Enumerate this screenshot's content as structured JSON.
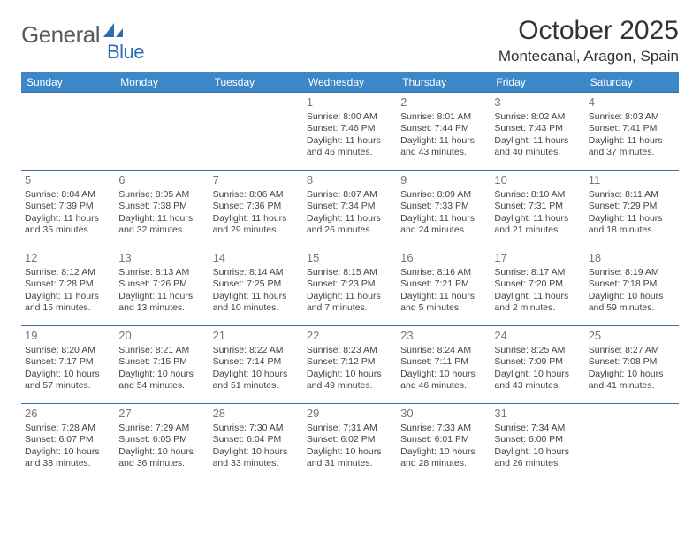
{
  "brand": {
    "name_part1": "General",
    "name_part2": "Blue",
    "icon_color": "#2b6fb0",
    "text_color_gray": "#5a5a5a",
    "text_color_blue": "#2b6fb0"
  },
  "title": {
    "month_year": "October 2025",
    "location": "Montecanal, Aragon, Spain",
    "title_fontsize": 30,
    "location_fontsize": 17
  },
  "style": {
    "header_bg": "#3b87c8",
    "header_fg": "#ffffff",
    "cell_border": "#3b6fa0",
    "daynum_color": "#777777",
    "body_font": "Arial",
    "cell_fontsize": 10.5,
    "daynum_fontsize": 13,
    "dayhead_fontsize": 12
  },
  "weekdays": [
    "Sunday",
    "Monday",
    "Tuesday",
    "Wednesday",
    "Thursday",
    "Friday",
    "Saturday"
  ],
  "grid": [
    [
      {
        "blank": true
      },
      {
        "blank": true
      },
      {
        "blank": true
      },
      {
        "day": "1",
        "sunrise": "8:00 AM",
        "sunset": "7:46 PM",
        "daylight": "11 hours and 46 minutes."
      },
      {
        "day": "2",
        "sunrise": "8:01 AM",
        "sunset": "7:44 PM",
        "daylight": "11 hours and 43 minutes."
      },
      {
        "day": "3",
        "sunrise": "8:02 AM",
        "sunset": "7:43 PM",
        "daylight": "11 hours and 40 minutes."
      },
      {
        "day": "4",
        "sunrise": "8:03 AM",
        "sunset": "7:41 PM",
        "daylight": "11 hours and 37 minutes."
      }
    ],
    [
      {
        "day": "5",
        "sunrise": "8:04 AM",
        "sunset": "7:39 PM",
        "daylight": "11 hours and 35 minutes."
      },
      {
        "day": "6",
        "sunrise": "8:05 AM",
        "sunset": "7:38 PM",
        "daylight": "11 hours and 32 minutes."
      },
      {
        "day": "7",
        "sunrise": "8:06 AM",
        "sunset": "7:36 PM",
        "daylight": "11 hours and 29 minutes."
      },
      {
        "day": "8",
        "sunrise": "8:07 AM",
        "sunset": "7:34 PM",
        "daylight": "11 hours and 26 minutes."
      },
      {
        "day": "9",
        "sunrise": "8:09 AM",
        "sunset": "7:33 PM",
        "daylight": "11 hours and 24 minutes."
      },
      {
        "day": "10",
        "sunrise": "8:10 AM",
        "sunset": "7:31 PM",
        "daylight": "11 hours and 21 minutes."
      },
      {
        "day": "11",
        "sunrise": "8:11 AM",
        "sunset": "7:29 PM",
        "daylight": "11 hours and 18 minutes."
      }
    ],
    [
      {
        "day": "12",
        "sunrise": "8:12 AM",
        "sunset": "7:28 PM",
        "daylight": "11 hours and 15 minutes."
      },
      {
        "day": "13",
        "sunrise": "8:13 AM",
        "sunset": "7:26 PM",
        "daylight": "11 hours and 13 minutes."
      },
      {
        "day": "14",
        "sunrise": "8:14 AM",
        "sunset": "7:25 PM",
        "daylight": "11 hours and 10 minutes."
      },
      {
        "day": "15",
        "sunrise": "8:15 AM",
        "sunset": "7:23 PM",
        "daylight": "11 hours and 7 minutes."
      },
      {
        "day": "16",
        "sunrise": "8:16 AM",
        "sunset": "7:21 PM",
        "daylight": "11 hours and 5 minutes."
      },
      {
        "day": "17",
        "sunrise": "8:17 AM",
        "sunset": "7:20 PM",
        "daylight": "11 hours and 2 minutes."
      },
      {
        "day": "18",
        "sunrise": "8:19 AM",
        "sunset": "7:18 PM",
        "daylight": "10 hours and 59 minutes."
      }
    ],
    [
      {
        "day": "19",
        "sunrise": "8:20 AM",
        "sunset": "7:17 PM",
        "daylight": "10 hours and 57 minutes."
      },
      {
        "day": "20",
        "sunrise": "8:21 AM",
        "sunset": "7:15 PM",
        "daylight": "10 hours and 54 minutes."
      },
      {
        "day": "21",
        "sunrise": "8:22 AM",
        "sunset": "7:14 PM",
        "daylight": "10 hours and 51 minutes."
      },
      {
        "day": "22",
        "sunrise": "8:23 AM",
        "sunset": "7:12 PM",
        "daylight": "10 hours and 49 minutes."
      },
      {
        "day": "23",
        "sunrise": "8:24 AM",
        "sunset": "7:11 PM",
        "daylight": "10 hours and 46 minutes."
      },
      {
        "day": "24",
        "sunrise": "8:25 AM",
        "sunset": "7:09 PM",
        "daylight": "10 hours and 43 minutes."
      },
      {
        "day": "25",
        "sunrise": "8:27 AM",
        "sunset": "7:08 PM",
        "daylight": "10 hours and 41 minutes."
      }
    ],
    [
      {
        "day": "26",
        "sunrise": "7:28 AM",
        "sunset": "6:07 PM",
        "daylight": "10 hours and 38 minutes."
      },
      {
        "day": "27",
        "sunrise": "7:29 AM",
        "sunset": "6:05 PM",
        "daylight": "10 hours and 36 minutes."
      },
      {
        "day": "28",
        "sunrise": "7:30 AM",
        "sunset": "6:04 PM",
        "daylight": "10 hours and 33 minutes."
      },
      {
        "day": "29",
        "sunrise": "7:31 AM",
        "sunset": "6:02 PM",
        "daylight": "10 hours and 31 minutes."
      },
      {
        "day": "30",
        "sunrise": "7:33 AM",
        "sunset": "6:01 PM",
        "daylight": "10 hours and 28 minutes."
      },
      {
        "day": "31",
        "sunrise": "7:34 AM",
        "sunset": "6:00 PM",
        "daylight": "10 hours and 26 minutes."
      },
      {
        "blank": true
      }
    ]
  ],
  "labels": {
    "sunrise_prefix": "Sunrise: ",
    "sunset_prefix": "Sunset: ",
    "daylight_prefix": "Daylight: "
  }
}
